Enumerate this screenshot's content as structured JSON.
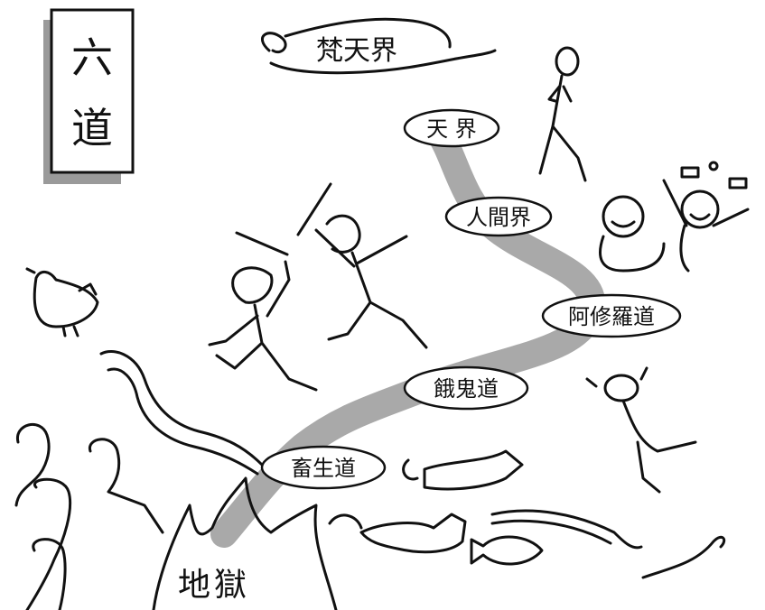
{
  "title_box": {
    "line1": "六",
    "line2": "道"
  },
  "cloud_label": "梵天界",
  "bottom_label": "地獄",
  "realms": [
    {
      "label": "天 界"
    },
    {
      "label": "人間界"
    },
    {
      "label": "阿修羅道"
    },
    {
      "label": "餓鬼道"
    },
    {
      "label": "畜生道"
    }
  ],
  "colors": {
    "path": "#a9a9a9",
    "ink": "#111111",
    "shadow": "#9a9a9a"
  }
}
